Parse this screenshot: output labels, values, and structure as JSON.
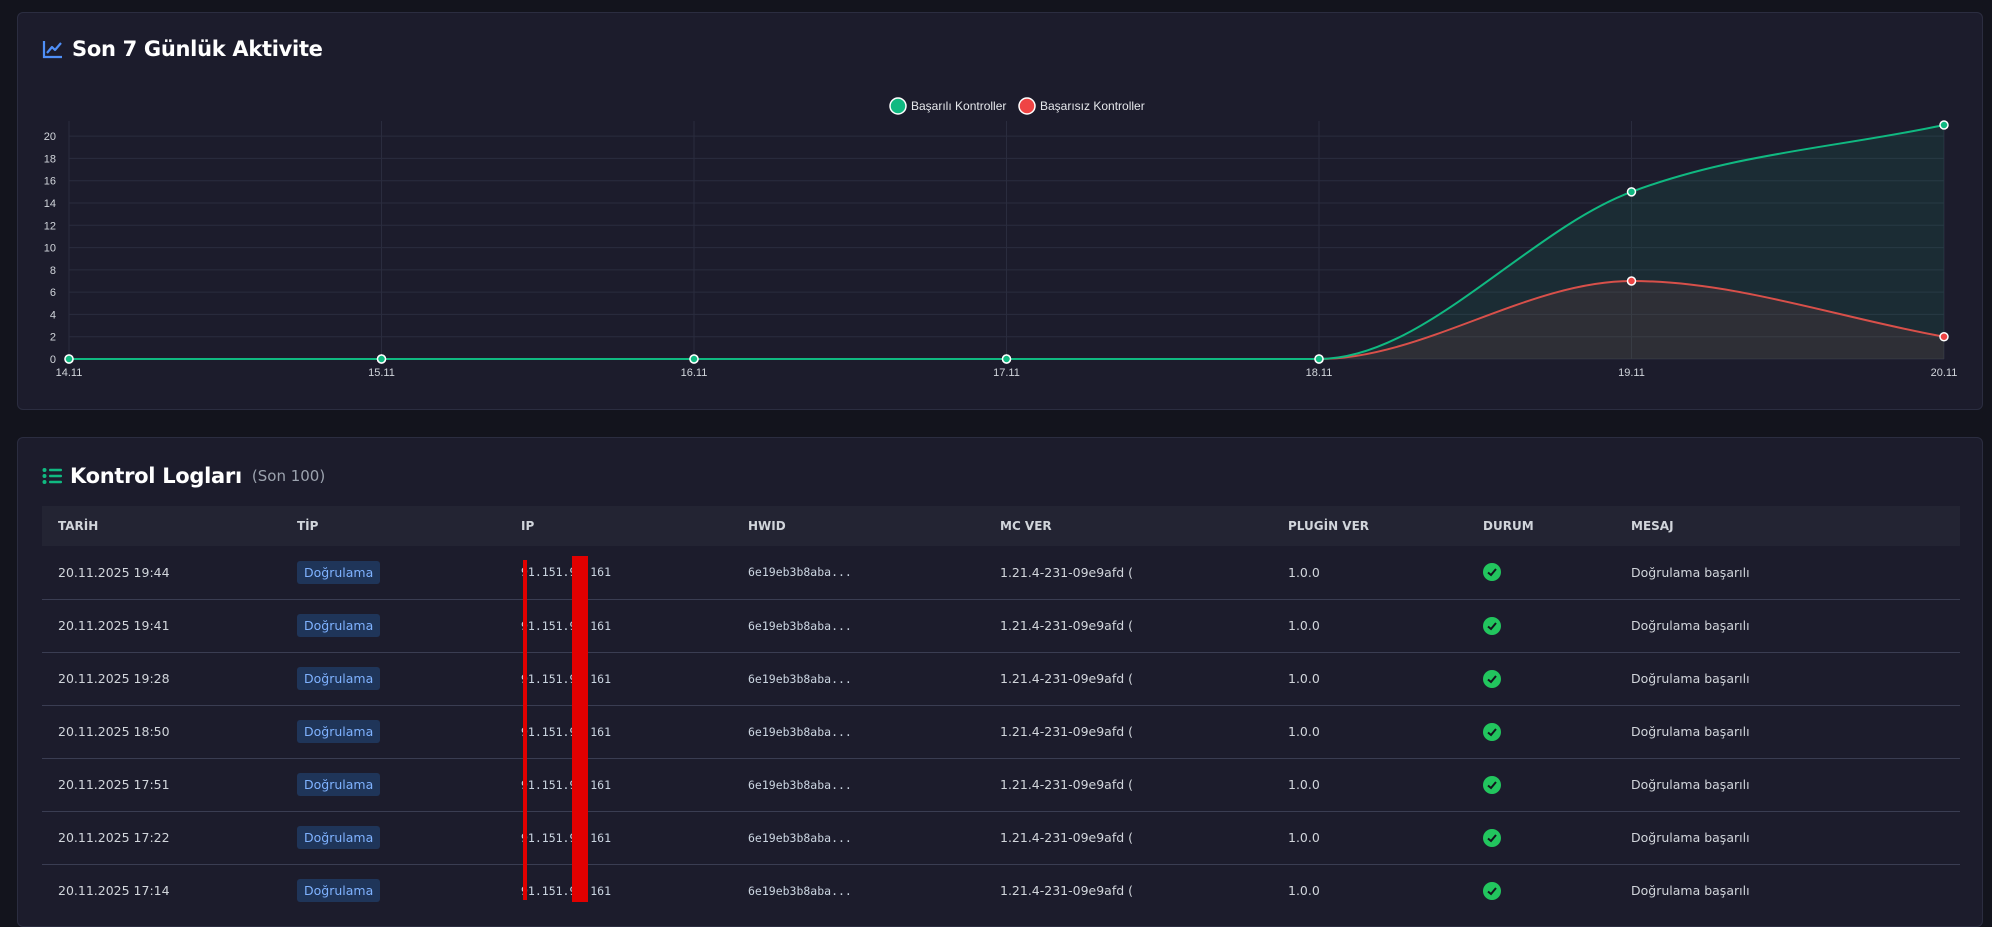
{
  "activity": {
    "title": "Son 7 Günlük Aktivite",
    "chart_data": {
      "type": "line",
      "categories": [
        "14.11",
        "15.11",
        "16.11",
        "17.11",
        "18.11",
        "19.11",
        "20.11"
      ],
      "series": [
        {
          "name": "Başarılı Kontroller",
          "values": [
            0,
            0,
            0,
            0,
            0,
            15,
            21
          ],
          "color": "#10b981"
        },
        {
          "name": "Başarısız Kontroller",
          "values": [
            0,
            0,
            0,
            0,
            0,
            7,
            2
          ],
          "color": "#ef4444"
        }
      ],
      "ylim": [
        0,
        21
      ],
      "yticks": [
        0,
        2,
        4,
        6,
        8,
        10,
        12,
        14,
        16,
        18,
        20
      ],
      "legend": "top-center",
      "grid": true
    }
  },
  "logs": {
    "title": "Kontrol Logları",
    "subtitle": "(Son 100)",
    "columns": [
      "TARİH",
      "TİP",
      "IP",
      "HWID",
      "MC VER",
      "PLUGİN VER",
      "DURUM",
      "MESAJ"
    ],
    "rows": [
      {
        "date": "20.11.2025 19:44",
        "type": "Doğrulama",
        "ip": "91.151.95.161",
        "hwid": "6e19eb3b8aba...",
        "mc": "1.21.4-231-09e9afd (",
        "plugin": "1.0.0",
        "status": "success",
        "message": "Doğrulama başarılı"
      },
      {
        "date": "20.11.2025 19:41",
        "type": "Doğrulama",
        "ip": "91.151.95.161",
        "hwid": "6e19eb3b8aba...",
        "mc": "1.21.4-231-09e9afd (",
        "plugin": "1.0.0",
        "status": "success",
        "message": "Doğrulama başarılı"
      },
      {
        "date": "20.11.2025 19:28",
        "type": "Doğrulama",
        "ip": "91.151.95.161",
        "hwid": "6e19eb3b8aba...",
        "mc": "1.21.4-231-09e9afd (",
        "plugin": "1.0.0",
        "status": "success",
        "message": "Doğrulama başarılı"
      },
      {
        "date": "20.11.2025 18:50",
        "type": "Doğrulama",
        "ip": "91.151.95.161",
        "hwid": "6e19eb3b8aba...",
        "mc": "1.21.4-231-09e9afd (",
        "plugin": "1.0.0",
        "status": "success",
        "message": "Doğrulama başarılı"
      },
      {
        "date": "20.11.2025 17:51",
        "type": "Doğrulama",
        "ip": "91.151.95.161",
        "hwid": "6e19eb3b8aba...",
        "mc": "1.21.4-231-09e9afd (",
        "plugin": "1.0.0",
        "status": "success",
        "message": "Doğrulama başarılı"
      },
      {
        "date": "20.11.2025 17:22",
        "type": "Doğrulama",
        "ip": "91.151.95.161",
        "hwid": "6e19eb3b8aba...",
        "mc": "1.21.4-231-09e9afd (",
        "plugin": "1.0.0",
        "status": "success",
        "message": "Doğrulama başarılı"
      },
      {
        "date": "20.11.2025 17:14",
        "type": "Doğrulama",
        "ip": "91.151.95.161",
        "hwid": "6e19eb3b8aba...",
        "mc": "1.21.4-231-09e9afd (",
        "plugin": "1.0.0",
        "status": "success",
        "message": "Doğrulama başarılı"
      }
    ]
  }
}
